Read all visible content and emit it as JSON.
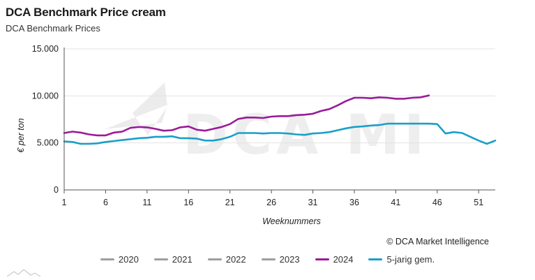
{
  "title": "DCA Benchmark Price cream",
  "subtitle": "DCA Benchmark Prices",
  "credit": "© DCA Market Intelligence",
  "watermark": "DCA MI",
  "colors": {
    "2020": "#9e9e9e",
    "2021": "#9e9e9e",
    "2022": "#9e9e9e",
    "2023": "#9e9e9e",
    "2024": "#9a1b9a",
    "avg": "#1a9fc9",
    "grid": "#e3e3e3",
    "axis": "#555555"
  },
  "chart_data": {
    "type": "line",
    "title": "DCA Benchmark Price cream",
    "subtitle": "DCA Benchmark Prices",
    "xlabel": "Weeknummers",
    "ylabel": "€ per ton",
    "xlim": [
      1,
      53
    ],
    "ylim": [
      0,
      15000
    ],
    "xticks": [
      1,
      6,
      11,
      16,
      21,
      26,
      31,
      36,
      41,
      46,
      51
    ],
    "yticks": [
      0,
      5000,
      10000,
      15000
    ],
    "ytick_labels": [
      "0",
      "5.000",
      "10.000",
      "15.000"
    ],
    "grid": "horizontal",
    "legend_position": "bottom",
    "series": [
      {
        "name": "2020",
        "key": "2020",
        "x": [],
        "values": []
      },
      {
        "name": "2021",
        "key": "2021",
        "x": [],
        "values": []
      },
      {
        "name": "2022",
        "key": "2022",
        "x": [],
        "values": []
      },
      {
        "name": "2023",
        "key": "2023",
        "x": [],
        "values": []
      },
      {
        "name": "2024",
        "key": "2024",
        "x": [
          1,
          2,
          3,
          4,
          5,
          6,
          7,
          8,
          9,
          10,
          11,
          12,
          13,
          14,
          15,
          16,
          17,
          18,
          19,
          20,
          21,
          22,
          23,
          24,
          25,
          26,
          27,
          28,
          29,
          30,
          31,
          32,
          33,
          34,
          35,
          36,
          37,
          38,
          39,
          40,
          41,
          42,
          43,
          44,
          45
        ],
        "values": [
          6050,
          6200,
          6100,
          5900,
          5800,
          5800,
          6100,
          6200,
          6600,
          6700,
          6650,
          6500,
          6300,
          6350,
          6650,
          6750,
          6400,
          6300,
          6500,
          6700,
          7000,
          7550,
          7700,
          7700,
          7650,
          7800,
          7850,
          7850,
          7950,
          8000,
          8100,
          8400,
          8600,
          9000,
          9450,
          9800,
          9800,
          9750,
          9850,
          9800,
          9700,
          9700,
          9800,
          9850,
          10050
        ]
      },
      {
        "name": "5-jarig gem.",
        "key": "avg",
        "x": [
          1,
          2,
          3,
          4,
          5,
          6,
          7,
          8,
          9,
          10,
          11,
          12,
          13,
          14,
          15,
          16,
          17,
          18,
          19,
          20,
          21,
          22,
          23,
          24,
          25,
          26,
          27,
          28,
          29,
          30,
          31,
          32,
          33,
          34,
          35,
          36,
          37,
          38,
          39,
          40,
          41,
          42,
          43,
          44,
          45,
          46,
          47,
          48,
          49,
          50,
          51,
          52,
          53
        ],
        "values": [
          5150,
          5100,
          4900,
          4900,
          4950,
          5100,
          5200,
          5300,
          5400,
          5500,
          5550,
          5650,
          5650,
          5700,
          5500,
          5500,
          5450,
          5250,
          5250,
          5400,
          5650,
          6050,
          6050,
          6050,
          6000,
          6050,
          6050,
          6000,
          5900,
          5850,
          6000,
          6050,
          6150,
          6350,
          6550,
          6700,
          6750,
          6850,
          6900,
          7050,
          7050,
          7050,
          7050,
          7050,
          7050,
          7000,
          6000,
          6150,
          6050,
          5650,
          5250,
          4900,
          5250
        ]
      }
    ]
  }
}
